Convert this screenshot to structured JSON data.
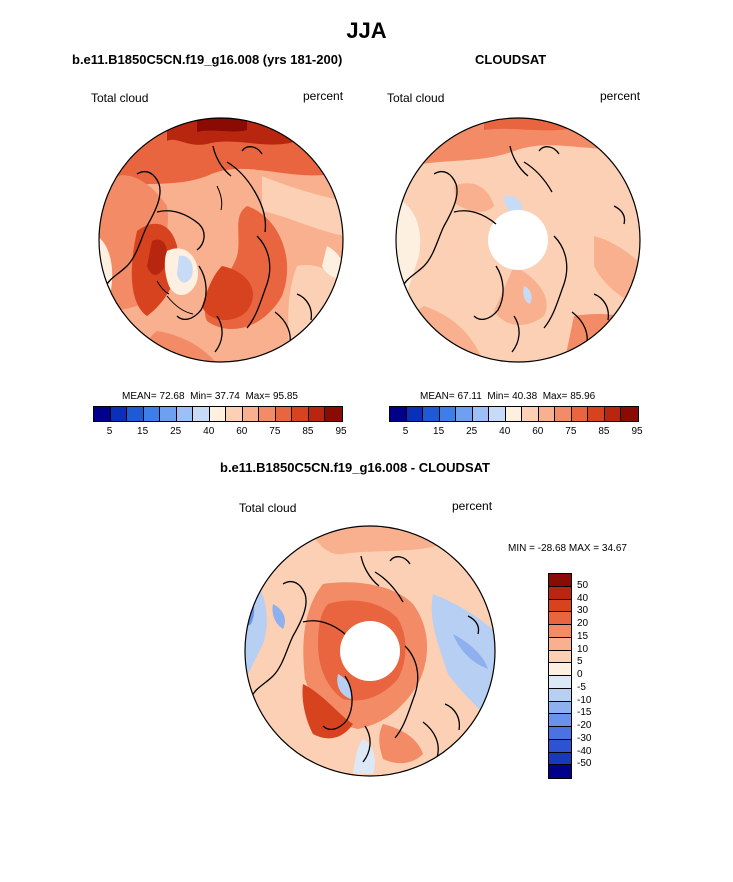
{
  "title": "JJA",
  "panels": {
    "left": {
      "title": "b.e11.B1850C5CN.f19_g16.008 (yrs 181-200)",
      "variable": "Total cloud",
      "units": "percent",
      "stats": {
        "mean_label": "MEAN=",
        "mean": "72.68",
        "min_label": "Min=",
        "min": "37.74",
        "max_label": "Max=",
        "max": "95.85"
      }
    },
    "right": {
      "title": "CLOUDSAT",
      "variable": "Total cloud",
      "units": "percent",
      "stats": {
        "mean_label": "MEAN=",
        "mean": "67.11",
        "min_label": "Min=",
        "min": "40.38",
        "max_label": "Max=",
        "max": "85.96"
      }
    },
    "diff": {
      "title": "b.e11.B1850C5CN.f19_g16.008 - CLOUDSAT",
      "variable": "Total cloud",
      "units": "percent",
      "stats_text": "MIN = -28.68 MAX =  34.67"
    }
  },
  "colorbar_abs": {
    "colors": [
      "#00008b",
      "#0a2fb8",
      "#1f5ad6",
      "#3d7ee8",
      "#6e9ff0",
      "#9cbff5",
      "#c8dbf6",
      "#fdf0e1",
      "#fbd0b4",
      "#f8b08e",
      "#f28b66",
      "#e8653f",
      "#d8431f",
      "#b8260f",
      "#8a0a04"
    ],
    "labels": [
      "5",
      "15",
      "25",
      "40",
      "60",
      "75",
      "85",
      "95"
    ]
  },
  "colorbar_diff": {
    "colors": [
      "#8a0a04",
      "#b8260f",
      "#d8431f",
      "#e8653f",
      "#f28b66",
      "#f8b08e",
      "#fbd0b4",
      "#fdf0e1",
      "#dce8f6",
      "#b6cff3",
      "#8eb0ee",
      "#6a92ea",
      "#4a72e2",
      "#2e52d2",
      "#163bb5",
      "#00008b"
    ],
    "labels": [
      "50",
      "40",
      "30",
      "20",
      "15",
      "10",
      "5",
      "0",
      "-5",
      "-10",
      "-15",
      "-20",
      "-30",
      "-40",
      "-50"
    ]
  }
}
